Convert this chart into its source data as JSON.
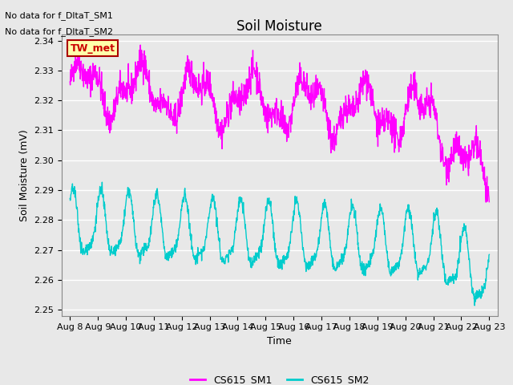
{
  "title": "Soil Moisture",
  "ylabel": "Soil Moisture (mV)",
  "xlabel": "Time",
  "annotations": [
    "No data for f_DltaT_SM1",
    "No data for f_DltaT_SM2"
  ],
  "legend_label1": "CS615_SM1",
  "legend_label2": "CS615_SM2",
  "color1": "#FF00FF",
  "color2": "#00CCCC",
  "box_label": "TW_met",
  "box_facecolor": "#FFFFAA",
  "box_edgecolor": "#AA0000",
  "box_textcolor": "#CC0000",
  "ylim": [
    2.248,
    2.342
  ],
  "yticks": [
    2.25,
    2.26,
    2.27,
    2.28,
    2.29,
    2.3,
    2.31,
    2.32,
    2.33,
    2.34
  ],
  "xtick_labels": [
    "Aug 8",
    "Aug 9",
    "Aug 10",
    "Aug 11",
    "Aug 12",
    "Aug 13",
    "Aug 14",
    "Aug 15",
    "Aug 16",
    "Aug 17",
    "Aug 18",
    "Aug 19",
    "Aug 20",
    "Aug 21",
    "Aug 22",
    "Aug 23"
  ],
  "background_color": "#E8E8E8",
  "fig_facecolor": "#E8E8E8",
  "grid_color": "#FFFFFF",
  "title_fontsize": 12,
  "axis_fontsize": 9,
  "tick_fontsize": 8,
  "linewidth": 1.0
}
